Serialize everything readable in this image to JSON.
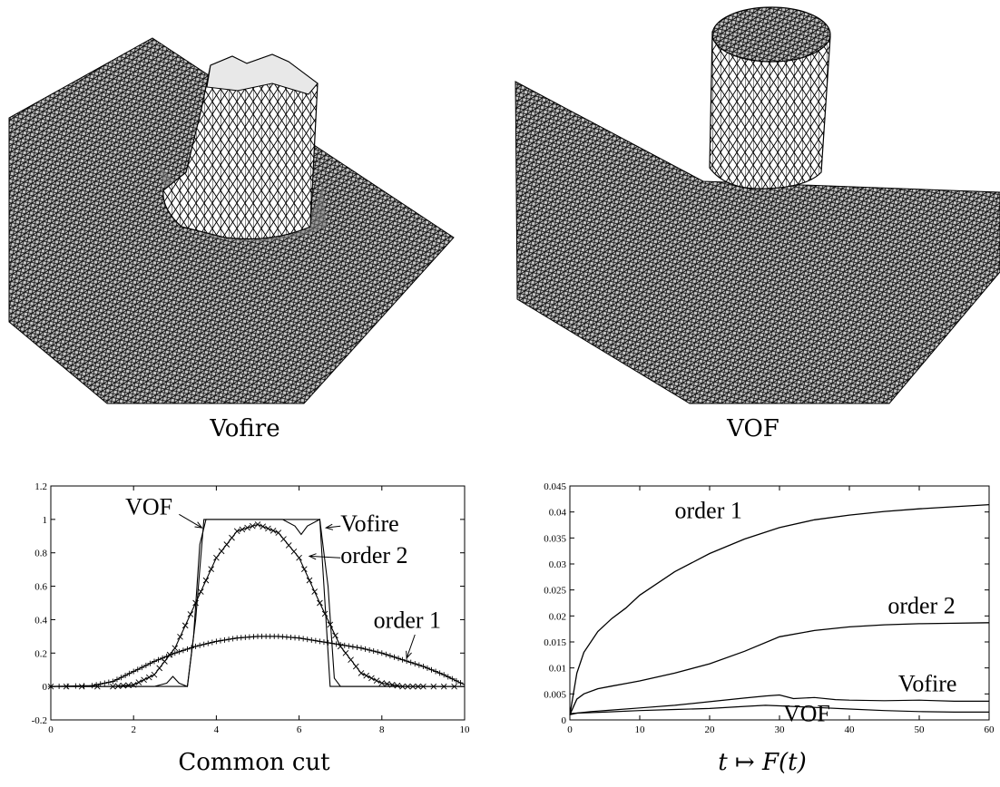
{
  "captions": {
    "top_left": "Vofire",
    "top_right": "VOF",
    "bottom_left": "Common cut",
    "bottom_right": "t ↦ F(t)"
  },
  "surfaces": {
    "left": {
      "label": "Vofire"
    },
    "right": {
      "label": "VOF"
    }
  },
  "chart_data": [
    {
      "type": "line",
      "title": "",
      "xlabel": "",
      "ylabel": "",
      "xlim": [
        0,
        10
      ],
      "ylim": [
        -0.2,
        1.2
      ],
      "xticks": [
        0,
        2,
        4,
        6,
        8,
        10
      ],
      "yticks": [
        -0.2,
        0,
        0.2,
        0.4,
        0.6,
        0.8,
        1,
        1.2
      ],
      "xtick_labels": [
        "0",
        "2",
        "4",
        "6",
        "8",
        "10"
      ],
      "ytick_labels": [
        "-0.2",
        "0",
        "0.2",
        "0.4",
        "0.6",
        "0.8",
        "1",
        "1.2"
      ],
      "annotations": [
        "VOF",
        "Vofire",
        "order 2",
        "order 1"
      ],
      "series": [
        {
          "name": "VOF",
          "x": [
            0,
            3.3,
            3.5,
            3.7,
            4.0,
            5.0,
            6.0,
            6.5,
            6.6,
            6.75,
            7.0,
            10
          ],
          "y": [
            0,
            0,
            0.4,
            1.0,
            1.0,
            1.0,
            1.0,
            1.0,
            0.6,
            0.0,
            0,
            0
          ]
        },
        {
          "name": "Vofire",
          "x": [
            0,
            2.5,
            2.8,
            2.95,
            3.1,
            3.3,
            3.45,
            3.6,
            3.75,
            4.0,
            5.0,
            5.6,
            5.9,
            6.05,
            6.2,
            6.5,
            6.7,
            6.85,
            7.0,
            10
          ],
          "y": [
            0,
            0,
            0.02,
            0.06,
            0.02,
            0.0,
            0.3,
            0.85,
            1.0,
            1.0,
            1.0,
            1.0,
            0.96,
            0.91,
            0.96,
            1.0,
            0.6,
            0.05,
            0,
            0
          ]
        },
        {
          "name": "order 2",
          "x": [
            0,
            1.5,
            2.0,
            2.5,
            3.0,
            3.5,
            4.0,
            4.5,
            5.0,
            5.5,
            6.0,
            6.5,
            7.0,
            7.5,
            8.0,
            8.5,
            9.0,
            10
          ],
          "y": [
            0,
            0,
            0.01,
            0.07,
            0.23,
            0.5,
            0.77,
            0.93,
            0.97,
            0.92,
            0.77,
            0.5,
            0.24,
            0.08,
            0.02,
            0.0,
            0,
            0
          ]
        },
        {
          "name": "order 1",
          "x": [
            0,
            1.0,
            1.5,
            2.0,
            2.5,
            3.0,
            3.5,
            4.0,
            4.5,
            5.0,
            5.5,
            6.0,
            6.5,
            7.0,
            7.5,
            8.0,
            8.5,
            9.0,
            9.5,
            10
          ],
          "y": [
            0,
            0.005,
            0.03,
            0.09,
            0.15,
            0.2,
            0.24,
            0.27,
            0.29,
            0.3,
            0.3,
            0.29,
            0.27,
            0.25,
            0.23,
            0.2,
            0.16,
            0.12,
            0.07,
            0.01
          ]
        }
      ]
    },
    {
      "type": "line",
      "title": "",
      "xlabel": "t ↦ F(t)",
      "ylabel": "",
      "xlim": [
        0,
        60
      ],
      "ylim": [
        0,
        0.045
      ],
      "xticks": [
        0,
        10,
        20,
        30,
        40,
        50,
        60
      ],
      "yticks": [
        0,
        0.005,
        0.01,
        0.015,
        0.02,
        0.025,
        0.03,
        0.035,
        0.04,
        0.045
      ],
      "xtick_labels": [
        "0",
        "10",
        "20",
        "30",
        "40",
        "50",
        "60"
      ],
      "ytick_labels": [
        "0",
        "0.005",
        "0.01",
        "0.015",
        "0.02",
        "0.025",
        "0.03",
        "0.035",
        "0.04",
        "0.045"
      ],
      "annotations": [
        "order 1",
        "order 2",
        "Vofire",
        "VOF"
      ],
      "series": [
        {
          "name": "order 1",
          "x": [
            0,
            1,
            2,
            4,
            6,
            8,
            10,
            15,
            20,
            25,
            30,
            35,
            40,
            45,
            50,
            55,
            60
          ],
          "y": [
            0.001,
            0.009,
            0.013,
            0.017,
            0.0195,
            0.0215,
            0.024,
            0.0285,
            0.032,
            0.0348,
            0.037,
            0.0385,
            0.0394,
            0.0401,
            0.0406,
            0.041,
            0.0414
          ]
        },
        {
          "name": "order 2",
          "x": [
            0,
            1,
            2,
            4,
            6,
            8,
            10,
            15,
            20,
            25,
            30,
            35,
            40,
            45,
            50,
            55,
            60
          ],
          "y": [
            0.001,
            0.004,
            0.005,
            0.006,
            0.0065,
            0.007,
            0.0075,
            0.009,
            0.0108,
            0.0132,
            0.016,
            0.0172,
            0.0179,
            0.0183,
            0.0185,
            0.0186,
            0.0187
          ]
        },
        {
          "name": "Vofire",
          "x": [
            0,
            1,
            3,
            6,
            10,
            15,
            20,
            25,
            28,
            30,
            32,
            35,
            38,
            40,
            45,
            50,
            55,
            60
          ],
          "y": [
            0.001,
            0.0013,
            0.0016,
            0.0019,
            0.0023,
            0.0028,
            0.0035,
            0.0042,
            0.0046,
            0.0048,
            0.0041,
            0.0043,
            0.0039,
            0.0038,
            0.0037,
            0.0038,
            0.0036,
            0.0036
          ]
        },
        {
          "name": "VOF",
          "x": [
            0,
            1,
            5,
            10,
            15,
            20,
            25,
            28,
            30,
            35,
            40,
            45,
            50,
            55,
            60
          ],
          "y": [
            0.0012,
            0.0013,
            0.0015,
            0.0018,
            0.002,
            0.0022,
            0.0026,
            0.0028,
            0.0027,
            0.0024,
            0.0021,
            0.0018,
            0.0016,
            0.0015,
            0.0015
          ]
        }
      ]
    }
  ]
}
